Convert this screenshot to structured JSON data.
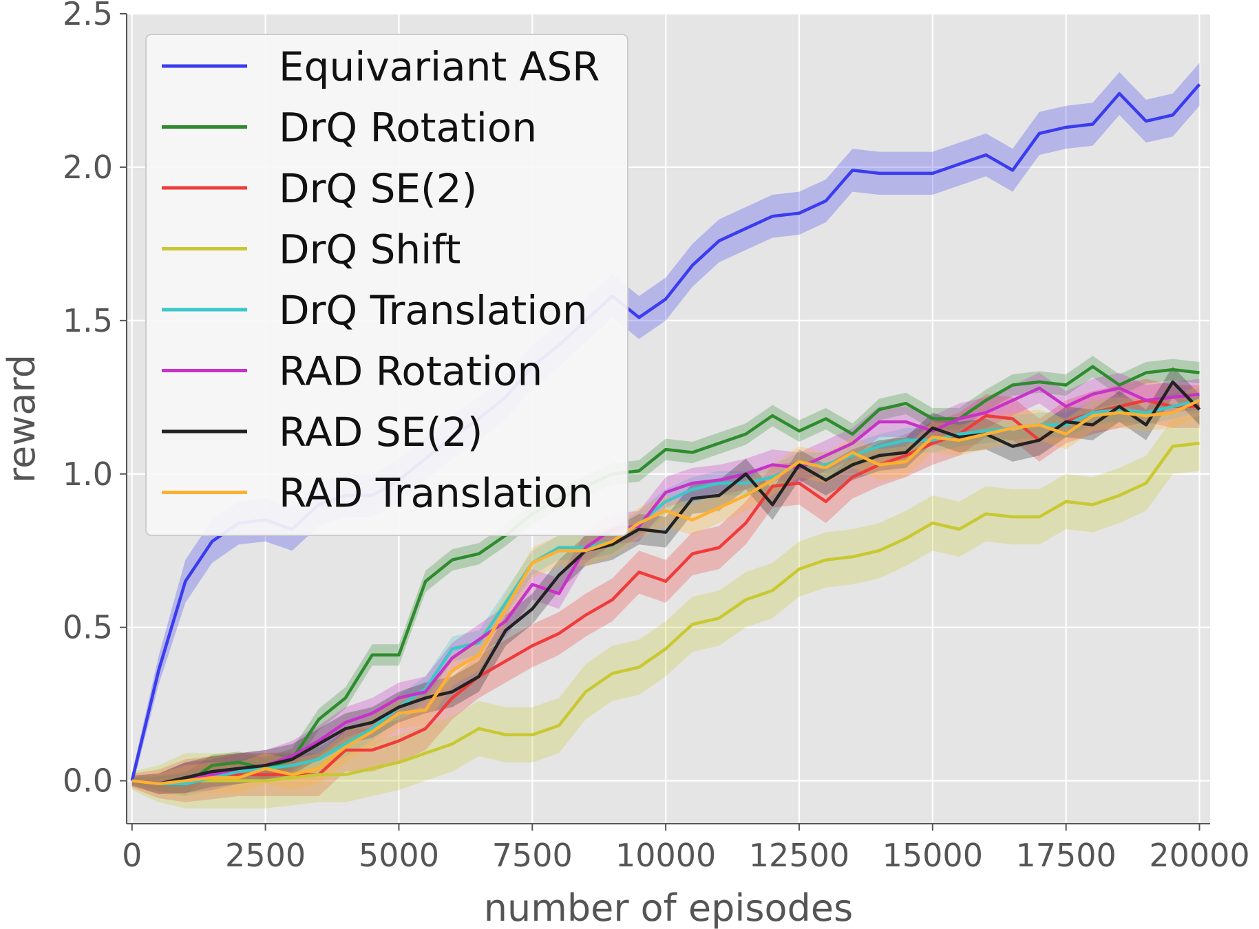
{
  "chart_data": {
    "type": "line",
    "xlabel": "number of episodes",
    "ylabel": "reward",
    "xlim": [
      -100,
      20200
    ],
    "ylim": [
      -0.14,
      2.5
    ],
    "grid": true,
    "legend_position": "top-left",
    "xticks": [
      0,
      2500,
      5000,
      7500,
      10000,
      12500,
      15000,
      17500,
      20000
    ],
    "xtick_labels": [
      "0",
      "2500",
      "5000",
      "7500",
      "10000",
      "12500",
      "15000",
      "17500",
      "20000"
    ],
    "yticks": [
      0.0,
      0.5,
      1.0,
      1.5,
      2.0,
      2.5
    ],
    "ytick_labels": [
      "0.0",
      "0.5",
      "1.0",
      "1.5",
      "2.0",
      "2.5"
    ],
    "x": [
      0,
      500,
      1000,
      1500,
      2000,
      2500,
      3000,
      3500,
      4000,
      4500,
      5000,
      5500,
      6000,
      6500,
      7000,
      7500,
      8000,
      8500,
      9000,
      9500,
      10000,
      10500,
      11000,
      11500,
      12000,
      12500,
      13000,
      13500,
      14000,
      14500,
      15000,
      15500,
      16000,
      16500,
      17000,
      17500,
      18000,
      18500,
      19000,
      19500,
      20000
    ],
    "series": [
      {
        "name": "Equivariant ASR",
        "color": "#3b3bf0",
        "values": [
          0.0,
          0.36,
          0.65,
          0.78,
          0.84,
          0.85,
          0.82,
          0.9,
          0.93,
          0.93,
          0.98,
          1.05,
          1.12,
          1.18,
          1.25,
          1.35,
          1.42,
          1.5,
          1.58,
          1.51,
          1.57,
          1.68,
          1.76,
          1.8,
          1.84,
          1.85,
          1.89,
          1.99,
          1.98,
          1.98,
          1.98,
          2.01,
          2.04,
          1.99,
          2.11,
          2.13,
          2.14,
          2.24,
          2.15,
          2.17,
          2.27
        ],
        "band": 0.07
      },
      {
        "name": "DrQ Rotation",
        "color": "#2e8b2e",
        "values": [
          0.0,
          -0.01,
          -0.01,
          0.05,
          0.06,
          0.04,
          0.07,
          0.2,
          0.27,
          0.41,
          0.41,
          0.65,
          0.72,
          0.74,
          0.8,
          0.87,
          0.92,
          0.96,
          1.0,
          1.01,
          1.08,
          1.07,
          1.1,
          1.13,
          1.19,
          1.14,
          1.18,
          1.13,
          1.21,
          1.23,
          1.18,
          1.18,
          1.24,
          1.29,
          1.3,
          1.29,
          1.35,
          1.29,
          1.33,
          1.34,
          1.33
        ],
        "band": 0.035
      },
      {
        "name": "DrQ SE(2)",
        "color": "#f03b3b",
        "values": [
          0.0,
          -0.01,
          0.0,
          0.01,
          0.02,
          0.02,
          0.02,
          0.02,
          0.1,
          0.1,
          0.13,
          0.17,
          0.27,
          0.34,
          0.39,
          0.44,
          0.48,
          0.54,
          0.59,
          0.68,
          0.65,
          0.74,
          0.76,
          0.84,
          0.96,
          0.97,
          0.91,
          0.99,
          1.03,
          1.06,
          1.1,
          1.13,
          1.19,
          1.18,
          1.11,
          1.17,
          1.2,
          1.22,
          1.24,
          1.22,
          1.22
        ],
        "band": 0.07
      },
      {
        "name": "DrQ Shift",
        "color": "#c8c832",
        "values": [
          0.0,
          -0.01,
          0.0,
          0.0,
          0.0,
          0.0,
          0.01,
          0.02,
          0.02,
          0.04,
          0.06,
          0.09,
          0.12,
          0.17,
          0.15,
          0.15,
          0.18,
          0.29,
          0.35,
          0.37,
          0.43,
          0.51,
          0.53,
          0.59,
          0.62,
          0.69,
          0.72,
          0.73,
          0.75,
          0.79,
          0.84,
          0.82,
          0.87,
          0.86,
          0.86,
          0.91,
          0.9,
          0.93,
          0.97,
          1.09,
          1.1
        ],
        "band": 0.09
      },
      {
        "name": "DrQ Translation",
        "color": "#3bc8c8",
        "values": [
          0.0,
          -0.01,
          -0.01,
          0.01,
          0.03,
          0.04,
          0.05,
          0.07,
          0.12,
          0.17,
          0.24,
          0.3,
          0.43,
          0.45,
          0.58,
          0.71,
          0.76,
          0.76,
          0.78,
          0.84,
          0.91,
          0.95,
          0.97,
          0.97,
          0.99,
          1.03,
          1.03,
          1.06,
          1.09,
          1.11,
          1.11,
          1.13,
          1.14,
          1.15,
          1.16,
          1.16,
          1.2,
          1.21,
          1.2,
          1.22,
          1.24
        ],
        "band": 0.04
      },
      {
        "name": "RAD Rotation",
        "color": "#c832c8",
        "values": [
          0.0,
          -0.01,
          0.01,
          0.02,
          0.04,
          0.05,
          0.08,
          0.13,
          0.19,
          0.22,
          0.27,
          0.29,
          0.4,
          0.46,
          0.52,
          0.64,
          0.61,
          0.76,
          0.82,
          0.83,
          0.94,
          0.97,
          0.98,
          1.0,
          1.03,
          1.02,
          1.06,
          1.1,
          1.17,
          1.17,
          1.14,
          1.18,
          1.2,
          1.24,
          1.28,
          1.22,
          1.26,
          1.28,
          1.24,
          1.25,
          1.26
        ],
        "band": 0.05
      },
      {
        "name": "RAD SE(2)",
        "color": "#222222",
        "values": [
          0.0,
          -0.01,
          0.01,
          0.03,
          0.04,
          0.05,
          0.07,
          0.12,
          0.17,
          0.19,
          0.24,
          0.27,
          0.29,
          0.34,
          0.49,
          0.56,
          0.67,
          0.75,
          0.77,
          0.82,
          0.81,
          0.92,
          0.93,
          1.0,
          0.9,
          1.03,
          0.98,
          1.03,
          1.06,
          1.07,
          1.15,
          1.12,
          1.13,
          1.09,
          1.11,
          1.17,
          1.16,
          1.22,
          1.16,
          1.3,
          1.21
        ],
        "band": 0.05
      },
      {
        "name": "RAD Translation",
        "color": "#ffb030",
        "values": [
          0.0,
          -0.01,
          0.0,
          0.01,
          0.01,
          0.04,
          0.02,
          0.04,
          0.11,
          0.16,
          0.22,
          0.23,
          0.36,
          0.41,
          0.56,
          0.71,
          0.75,
          0.75,
          0.78,
          0.84,
          0.88,
          0.85,
          0.89,
          0.93,
          0.98,
          1.04,
          1.02,
          1.07,
          1.03,
          1.04,
          1.12,
          1.11,
          1.13,
          1.15,
          1.16,
          1.13,
          1.19,
          1.2,
          1.19,
          1.2,
          1.24
        ],
        "band": 0.05
      }
    ]
  }
}
